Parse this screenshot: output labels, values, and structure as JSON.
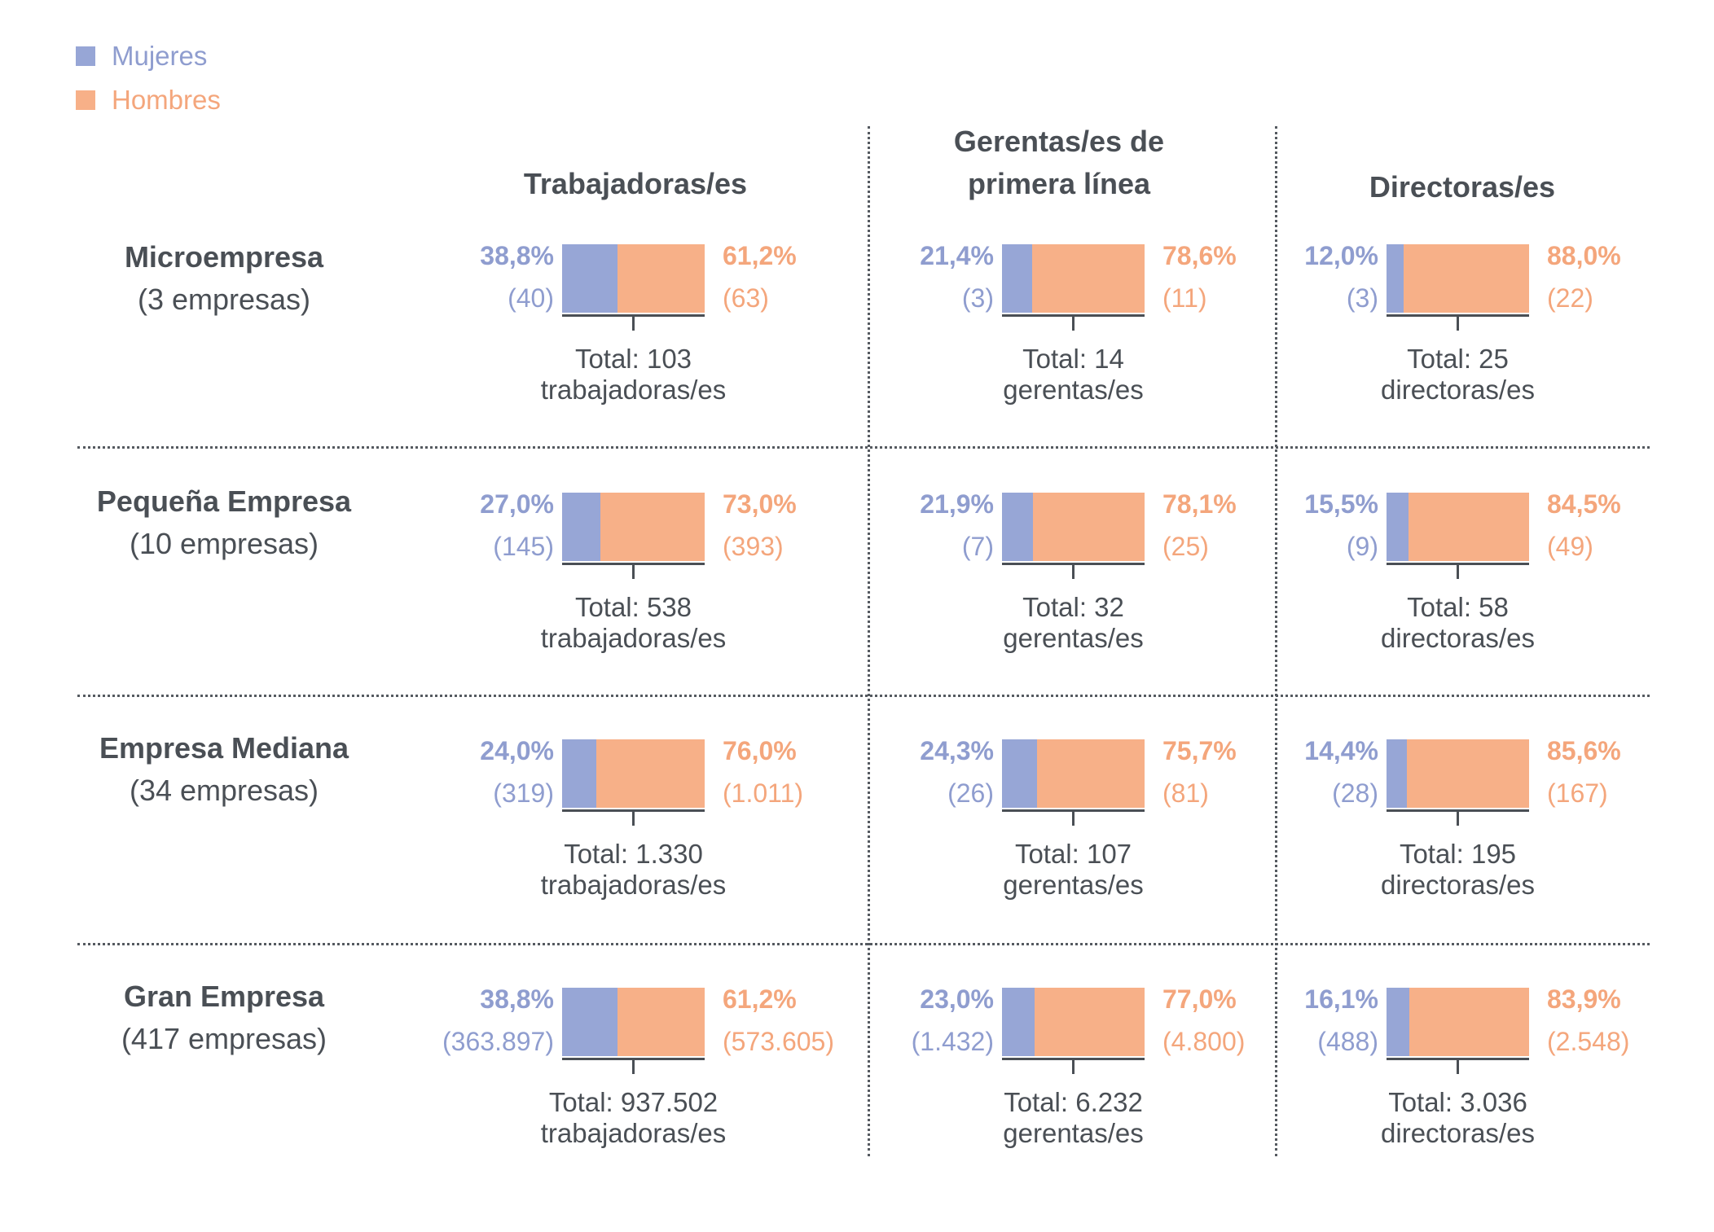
{
  "legend": [
    {
      "label": "Mujeres",
      "color": "#8f9dcf"
    },
    {
      "label": "Hombres",
      "color": "#f4a67c"
    }
  ],
  "columns": [
    "Trabajadoras/es",
    "Gerentas/es de primera línea",
    "Directoras/es"
  ],
  "colors": {
    "women": "#97a6d6",
    "men": "#f7b088",
    "women_text": "#8f9dcf",
    "men_text": "#f4a67c"
  },
  "chart_data": {
    "type": "bar",
    "stacked": true,
    "normalized": true,
    "title": "",
    "series_names": [
      "Mujeres",
      "Hombres"
    ],
    "rows": [
      {
        "name": "Microempresa",
        "count": "(3 empresas)",
        "cells": [
          {
            "women_pct": 38.8,
            "men_pct": 61.2,
            "women_pct_label": "38,8%",
            "men_pct_label": "61,2%",
            "women_n": "(40)",
            "men_n": "(63)",
            "total_line1": "Total: 103",
            "total_line2": "trabajadoras/es"
          },
          {
            "women_pct": 21.4,
            "men_pct": 78.6,
            "women_pct_label": "21,4%",
            "men_pct_label": "78,6%",
            "women_n": "(3)",
            "men_n": "(11)",
            "total_line1": "Total: 14",
            "total_line2": "gerentas/es"
          },
          {
            "women_pct": 12.0,
            "men_pct": 88.0,
            "women_pct_label": "12,0%",
            "men_pct_label": "88,0%",
            "women_n": "(3)",
            "men_n": "(22)",
            "total_line1": "Total: 25",
            "total_line2": "directoras/es"
          }
        ]
      },
      {
        "name": "Pequeña Empresa",
        "count": "(10 empresas)",
        "cells": [
          {
            "women_pct": 27.0,
            "men_pct": 73.0,
            "women_pct_label": "27,0%",
            "men_pct_label": "73,0%",
            "women_n": "(145)",
            "men_n": "(393)",
            "total_line1": "Total: 538",
            "total_line2": "trabajadoras/es"
          },
          {
            "women_pct": 21.9,
            "men_pct": 78.1,
            "women_pct_label": "21,9%",
            "men_pct_label": "78,1%",
            "women_n": "(7)",
            "men_n": "(25)",
            "total_line1": "Total: 32",
            "total_line2": "gerentas/es"
          },
          {
            "women_pct": 15.5,
            "men_pct": 84.5,
            "women_pct_label": "15,5%",
            "men_pct_label": "84,5%",
            "women_n": "(9)",
            "men_n": "(49)",
            "total_line1": "Total: 58",
            "total_line2": "directoras/es"
          }
        ]
      },
      {
        "name": "Empresa Mediana",
        "count": "(34 empresas)",
        "cells": [
          {
            "women_pct": 24.0,
            "men_pct": 76.0,
            "women_pct_label": "24,0%",
            "men_pct_label": "76,0%",
            "women_n": "(319)",
            "men_n": "(1.011)",
            "total_line1": "Total: 1.330",
            "total_line2": "trabajadoras/es"
          },
          {
            "women_pct": 24.3,
            "men_pct": 75.7,
            "women_pct_label": "24,3%",
            "men_pct_label": "75,7%",
            "women_n": "(26)",
            "men_n": "(81)",
            "total_line1": "Total: 107",
            "total_line2": "gerentas/es"
          },
          {
            "women_pct": 14.4,
            "men_pct": 85.6,
            "women_pct_label": "14,4%",
            "men_pct_label": "85,6%",
            "women_n": "(28)",
            "men_n": "(167)",
            "total_line1": "Total: 195",
            "total_line2": "directoras/es"
          }
        ]
      },
      {
        "name": "Gran Empresa",
        "count": "(417 empresas)",
        "cells": [
          {
            "women_pct": 38.8,
            "men_pct": 61.2,
            "women_pct_label": "38,8%",
            "men_pct_label": "61,2%",
            "women_n": "(363.897)",
            "men_n": "(573.605)",
            "total_line1": "Total: 937.502",
            "total_line2": "trabajadoras/es"
          },
          {
            "women_pct": 23.0,
            "men_pct": 77.0,
            "women_pct_label": "23,0%",
            "men_pct_label": "77,0%",
            "women_n": "(1.432)",
            "men_n": "(4.800)",
            "total_line1": "Total: 6.232",
            "total_line2": "gerentas/es"
          },
          {
            "women_pct": 16.1,
            "men_pct": 83.9,
            "women_pct_label": "16,1%",
            "men_pct_label": "83,9%",
            "women_n": "(488)",
            "men_n": "(2.548)",
            "total_line1": "Total: 3.036",
            "total_line2": "directoras/es"
          }
        ]
      }
    ]
  }
}
